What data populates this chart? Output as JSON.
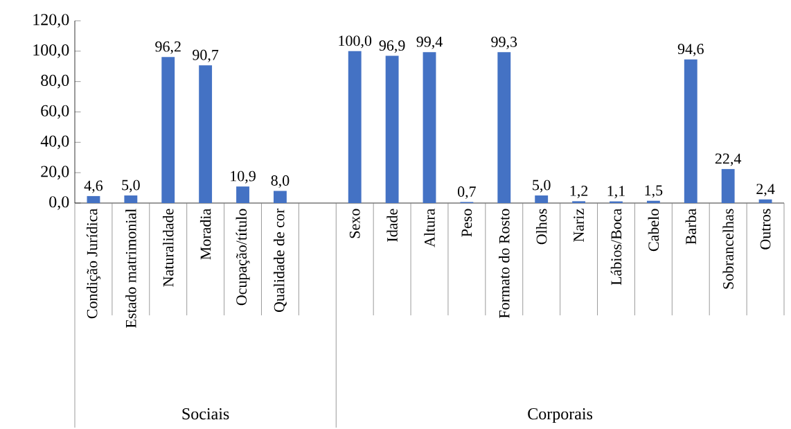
{
  "chart_data": {
    "type": "bar",
    "categories": [
      "Condição Jurídica",
      "Estado matrimonial",
      "Naturalidade",
      "Moradia",
      "Ocupação/título",
      "Qualidade de cor",
      null,
      "Sexo",
      "Idade",
      "Altura",
      "Peso",
      "Formato do Rosto",
      "Olhos",
      "Nariz",
      "Lábios/Boca",
      "Cabelo",
      "Barba",
      "Sobrancelhas",
      "Outros"
    ],
    "values": [
      4.6,
      5.0,
      96.2,
      90.7,
      10.9,
      8.0,
      null,
      100.0,
      96.9,
      99.4,
      0.7,
      99.3,
      5.0,
      1.2,
      1.1,
      1.5,
      94.6,
      22.4,
      2.4
    ],
    "value_labels": [
      "4,6",
      "5,0",
      "96,2",
      "90,7",
      "10,9",
      "8,0",
      null,
      "100,0",
      "96,9",
      "99,4",
      "0,7",
      "99,3",
      "5,0",
      "1,2",
      "1,1",
      "1,5",
      "94,6",
      "22,4",
      "2,4"
    ],
    "color": "#4472c4",
    "ylim": [
      0,
      120
    ],
    "yticks": [
      {
        "value": 0,
        "label": "0,0"
      },
      {
        "value": 20,
        "label": "20,0"
      },
      {
        "value": 40,
        "label": "40,0"
      },
      {
        "value": 60,
        "label": "60,0"
      },
      {
        "value": 80,
        "label": "80,0"
      },
      {
        "value": 100,
        "label": "100,0"
      },
      {
        "value": 120,
        "label": "120,0"
      }
    ],
    "annotations": [
      "Sociais",
      "Corporais"
    ]
  }
}
